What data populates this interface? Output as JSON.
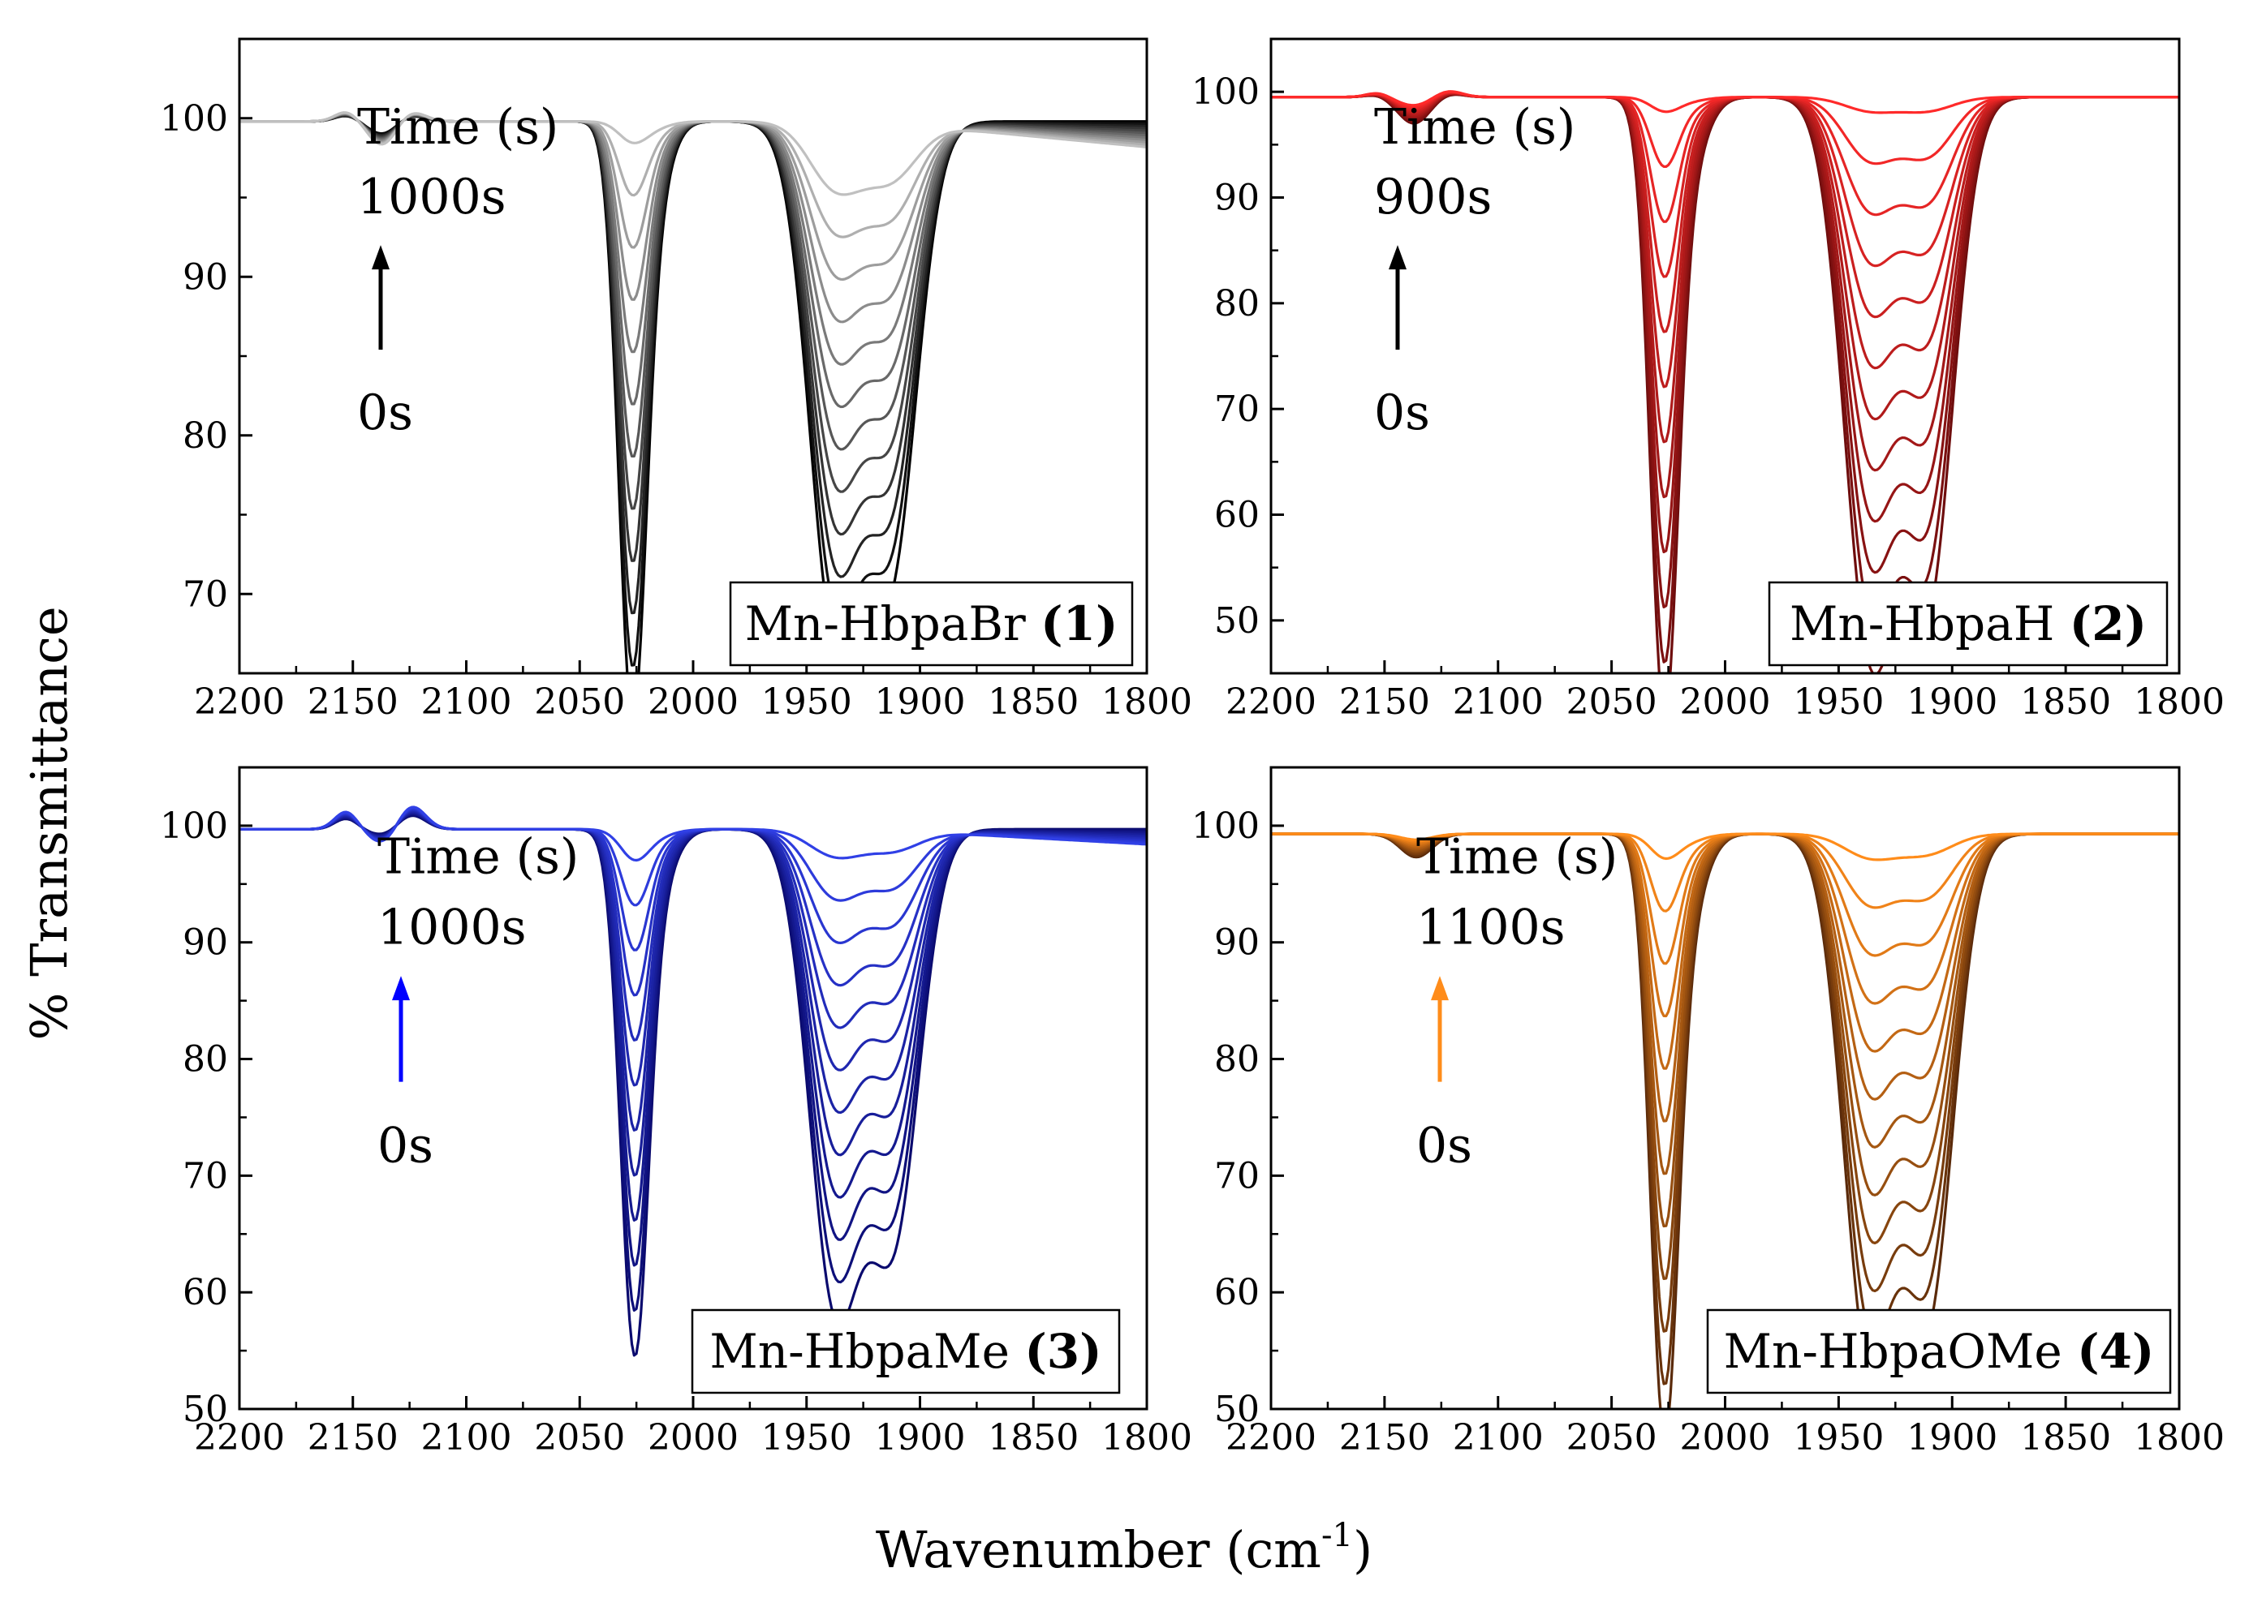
{
  "figure": {
    "x_title": "Wavenumber (cm",
    "x_title_sup": "-1",
    "x_title_close": ")",
    "y_title": "% Transmittance"
  },
  "chart_data": [
    {
      "type": "line",
      "panel": "top-left",
      "label_text": "Mn-HbpaBr ",
      "label_num": "(1)",
      "time_title": "Time (s)",
      "time_end": "1000s",
      "time_start": "0s",
      "arrow_color": "#000000",
      "xlim": [
        2200,
        1800
      ],
      "ylim": [
        65,
        105
      ],
      "yticks": [
        70,
        80,
        90,
        100
      ],
      "xticks": [
        2200,
        2150,
        2100,
        2050,
        2000,
        1950,
        1900,
        1850,
        1800
      ],
      "color_start": "#000000",
      "color_end": "#c0c0c0",
      "n_series": 12,
      "baseline_min": 99.8,
      "baseline_slope_max": 0.015,
      "peaks": [
        {
          "center": 2027,
          "width": 6,
          "depth_min": 33.5,
          "depth_max": 1.0
        },
        {
          "center": 2020,
          "width": 8,
          "depth_min": 6,
          "depth_max": 0.5
        },
        {
          "center": 1938,
          "width": 11,
          "depth_min": 27.5,
          "depth_max": 3.2
        },
        {
          "center": 1912,
          "width": 11,
          "depth_min": 23.5,
          "depth_max": 2.5
        },
        {
          "center": 1925,
          "width": 16,
          "depth_min": 6,
          "depth_max": 1.5
        },
        {
          "center": 2137,
          "width": 6,
          "depth_min": 0.8,
          "depth_max": 1.5
        }
      ],
      "wiggles": [
        {
          "center": 2153,
          "width": 5,
          "amp": 0.6
        },
        {
          "center": 2124,
          "width": 6,
          "amp": 0.6
        }
      ]
    },
    {
      "type": "line",
      "panel": "top-right",
      "label_text": "Mn-HbpaH ",
      "label_num": "(2)",
      "time_title": "Time (s)",
      "time_end": "900s",
      "time_start": "0s",
      "arrow_color": "#000000",
      "xlim": [
        2200,
        1800
      ],
      "ylim": [
        45,
        105
      ],
      "yticks": [
        50,
        60,
        70,
        80,
        90,
        100
      ],
      "xticks": [
        2200,
        2150,
        2100,
        2050,
        2000,
        1950,
        1900,
        1850,
        1800
      ],
      "color_start": "#6e0d0d",
      "color_end": "#ff2a2a",
      "n_series": 12,
      "baseline_min": 99.5,
      "baseline_slope_max": 0,
      "peaks": [
        {
          "center": 2027,
          "width": 6,
          "depth_min": 52,
          "depth_max": 1.0
        },
        {
          "center": 2020,
          "width": 9,
          "depth_min": 9,
          "depth_max": 0.5
        },
        {
          "center": 1937,
          "width": 11,
          "depth_min": 44.5,
          "depth_max": 1.0
        },
        {
          "center": 1910,
          "width": 11,
          "depth_min": 40.5,
          "depth_max": 1.0
        },
        {
          "center": 1924,
          "width": 15,
          "depth_min": 10,
          "depth_max": 0.5
        },
        {
          "center": 2137,
          "width": 7,
          "depth_min": 2.5,
          "depth_max": 0.8
        }
      ],
      "wiggles": [
        {
          "center": 2153,
          "width": 5,
          "amp": 0.4
        },
        {
          "center": 2122,
          "width": 6,
          "amp": 0.6
        }
      ]
    },
    {
      "type": "line",
      "panel": "bottom-left",
      "label_text": "Mn-HbpaMe ",
      "label_num": "(3)",
      "time_title": "Time (s)",
      "time_end": "1000s",
      "time_start": "0s",
      "arrow_color": "#0000ff",
      "xlim": [
        2200,
        1800
      ],
      "ylim": [
        50,
        105
      ],
      "yticks": [
        50,
        60,
        70,
        80,
        90,
        100
      ],
      "xticks": [
        2200,
        2150,
        2100,
        2050,
        2000,
        1950,
        1900,
        1850,
        1800
      ],
      "color_start": "#0a0a6e",
      "color_end": "#3040e6",
      "n_series": 12,
      "baseline_min": 99.7,
      "baseline_slope_max": 0.012,
      "peaks": [
        {
          "center": 2026,
          "width": 6,
          "depth_min": 39.5,
          "depth_max": 2.0
        },
        {
          "center": 2020,
          "width": 9,
          "depth_min": 7,
          "depth_max": 0.8
        },
        {
          "center": 1938,
          "width": 11,
          "depth_min": 35.5,
          "depth_max": 1.8
        },
        {
          "center": 1911,
          "width": 11,
          "depth_min": 29.5,
          "depth_max": 1.2
        },
        {
          "center": 1924,
          "width": 16,
          "depth_min": 7,
          "depth_max": 0.8
        },
        {
          "center": 2137,
          "width": 6,
          "depth_min": 0.5,
          "depth_max": 1.2
        }
      ],
      "wiggles": [
        {
          "center": 2153,
          "width": 5,
          "amp": 1.5
        },
        {
          "center": 2124,
          "width": 6,
          "amp": 2.0
        }
      ]
    },
    {
      "type": "line",
      "panel": "bottom-right",
      "label_text": "Mn-HbpaOMe ",
      "label_num": "(4)",
      "time_title": "Time (s)",
      "time_end": "1100s",
      "time_start": "0s",
      "arrow_color": "#ff8c1a",
      "xlim": [
        2200,
        1800
      ],
      "ylim": [
        50,
        105
      ],
      "yticks": [
        50,
        60,
        70,
        80,
        90,
        100
      ],
      "xticks": [
        2200,
        2150,
        2100,
        2050,
        2000,
        1950,
        1900,
        1850,
        1800
      ],
      "color_start": "#5a2a0a",
      "color_end": "#ff8c1a",
      "n_series": 12,
      "baseline_min": 99.3,
      "baseline_slope_max": 0,
      "peaks": [
        {
          "center": 2027,
          "width": 6,
          "depth_min": 45,
          "depth_max": 1.5
        },
        {
          "center": 2020,
          "width": 9,
          "depth_min": 9,
          "depth_max": 0.8
        },
        {
          "center": 1937,
          "width": 11,
          "depth_min": 39,
          "depth_max": 1.5
        },
        {
          "center": 1910,
          "width": 11,
          "depth_min": 35,
          "depth_max": 1.2
        },
        {
          "center": 1924,
          "width": 16,
          "depth_min": 8,
          "depth_max": 0.8
        },
        {
          "center": 2136,
          "width": 7,
          "depth_min": 2.0,
          "depth_max": 0.5
        }
      ],
      "wiggles": []
    }
  ]
}
